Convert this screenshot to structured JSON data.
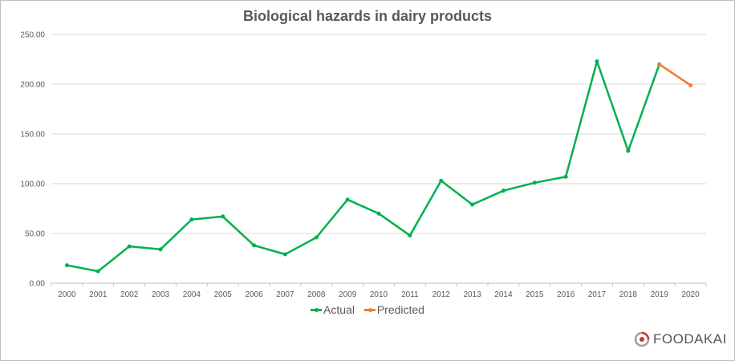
{
  "chart_data": {
    "type": "line",
    "title": "Biological hazards in dairy products",
    "categories": [
      "2000",
      "2001",
      "2002",
      "2003",
      "2004",
      "2005",
      "2006",
      "2007",
      "2008",
      "2009",
      "2010",
      "2011",
      "2012",
      "2013",
      "2014",
      "2015",
      "2016",
      "2017",
      "2018",
      "2019",
      "2020"
    ],
    "series": [
      {
        "name": "Actual",
        "color": "#00b050",
        "values": [
          18,
          12,
          37,
          34,
          64,
          67,
          38,
          29,
          46,
          84,
          70,
          48,
          103,
          79,
          93,
          101,
          107,
          223,
          133,
          220,
          null
        ]
      },
      {
        "name": "Predicted",
        "color": "#ed7d31",
        "values": [
          null,
          null,
          null,
          null,
          null,
          null,
          null,
          null,
          null,
          null,
          null,
          null,
          null,
          null,
          null,
          null,
          null,
          null,
          null,
          220,
          199
        ]
      }
    ],
    "ylim": [
      0,
      250
    ],
    "yticks": [
      "0.00",
      "50.00",
      "100.00",
      "150.00",
      "200.00",
      "250.00"
    ],
    "ytick_values": [
      0,
      50,
      100,
      150,
      200,
      250
    ],
    "grid": "horizontal",
    "legend": "bottom",
    "xlabel": "",
    "ylabel": ""
  },
  "branding": {
    "logo_text": "FOODAKAI",
    "logo_icon": "foodakai-logo-icon"
  }
}
